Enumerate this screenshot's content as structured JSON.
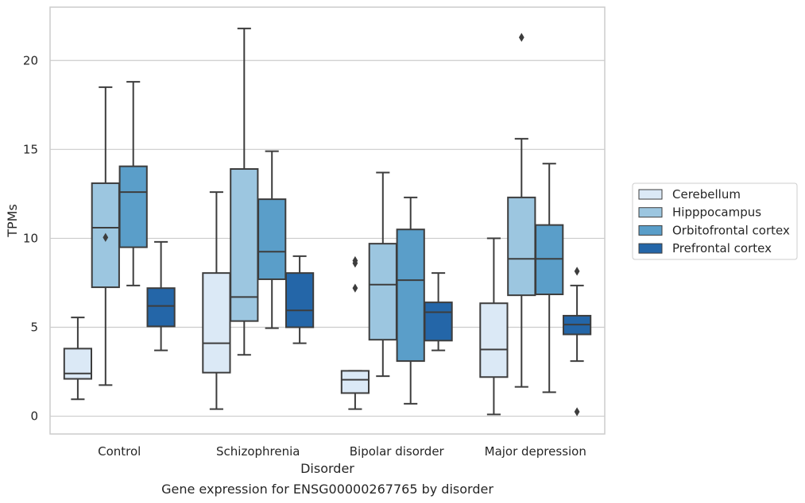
{
  "chart_data": {
    "type": "box",
    "title": "Gene expression for ENSG00000267765 by disorder",
    "xlabel": "Disorder",
    "ylabel": "TPMs",
    "ylim": [
      -1,
      23
    ],
    "yticks": [
      "0",
      "5",
      "10",
      "15",
      "20"
    ],
    "grid": "horizontal",
    "legend_position": "right",
    "categories": [
      "Control",
      "Schizophrenia",
      "Bipolar disorder",
      "Major depression"
    ],
    "series": [
      {
        "name": "Cerebellum",
        "color": "#dbe9f6",
        "boxes": [
          {
            "whislo": 0.95,
            "q1": 2.1,
            "med": 2.4,
            "q3": 3.8,
            "whishi": 5.55,
            "fliers": []
          },
          {
            "whislo": 0.4,
            "q1": 2.45,
            "med": 4.1,
            "q3": 8.05,
            "whishi": 12.6,
            "fliers": []
          },
          {
            "whislo": 0.4,
            "q1": 1.3,
            "med": 2.05,
            "q3": 2.55,
            "whishi": 2.55,
            "fliers": [
              7.2,
              8.6,
              8.75
            ]
          },
          {
            "whislo": 0.1,
            "q1": 2.2,
            "med": 3.75,
            "q3": 6.35,
            "whishi": 10.0,
            "fliers": []
          }
        ]
      },
      {
        "name": "Hipppocampus",
        "color": "#9cc6e0",
        "boxes": [
          {
            "whislo": 1.75,
            "q1": 7.25,
            "med": 10.6,
            "q3": 13.1,
            "whishi": 18.5,
            "fliers": [
              10.05
            ]
          },
          {
            "whislo": 3.45,
            "q1": 5.35,
            "med": 6.7,
            "q3": 13.9,
            "whishi": 21.8,
            "fliers": []
          },
          {
            "whislo": 2.25,
            "q1": 4.3,
            "med": 7.4,
            "q3": 9.7,
            "whishi": 13.7,
            "fliers": []
          },
          {
            "whislo": 1.65,
            "q1": 6.8,
            "med": 8.85,
            "q3": 12.3,
            "whishi": 15.6,
            "fliers": [
              21.3
            ]
          }
        ]
      },
      {
        "name": "Orbitofrontal cortex",
        "color": "#5a9ec9",
        "boxes": [
          {
            "whislo": 7.35,
            "q1": 9.5,
            "med": 12.6,
            "q3": 14.05,
            "whishi": 18.8,
            "fliers": []
          },
          {
            "whislo": 4.95,
            "q1": 7.7,
            "med": 9.25,
            "q3": 12.2,
            "whishi": 14.9,
            "fliers": []
          },
          {
            "whislo": 0.7,
            "q1": 3.1,
            "med": 7.65,
            "q3": 10.5,
            "whishi": 12.3,
            "fliers": []
          },
          {
            "whislo": 1.35,
            "q1": 6.85,
            "med": 8.85,
            "q3": 10.75,
            "whishi": 14.2,
            "fliers": []
          }
        ]
      },
      {
        "name": "Prefrontal cortex",
        "color": "#2466a8",
        "boxes": [
          {
            "whislo": 3.7,
            "q1": 5.05,
            "med": 6.2,
            "q3": 7.2,
            "whishi": 9.8,
            "fliers": []
          },
          {
            "whislo": 4.1,
            "q1": 5.0,
            "med": 5.95,
            "q3": 8.05,
            "whishi": 9.0,
            "fliers": []
          },
          {
            "whislo": 3.7,
            "q1": 4.25,
            "med": 5.85,
            "q3": 6.4,
            "whishi": 8.05,
            "fliers": []
          },
          {
            "whislo": 3.1,
            "q1": 4.6,
            "med": 5.15,
            "q3": 5.65,
            "whishi": 7.35,
            "fliers": [
              0.25,
              8.15
            ]
          }
        ]
      }
    ]
  }
}
